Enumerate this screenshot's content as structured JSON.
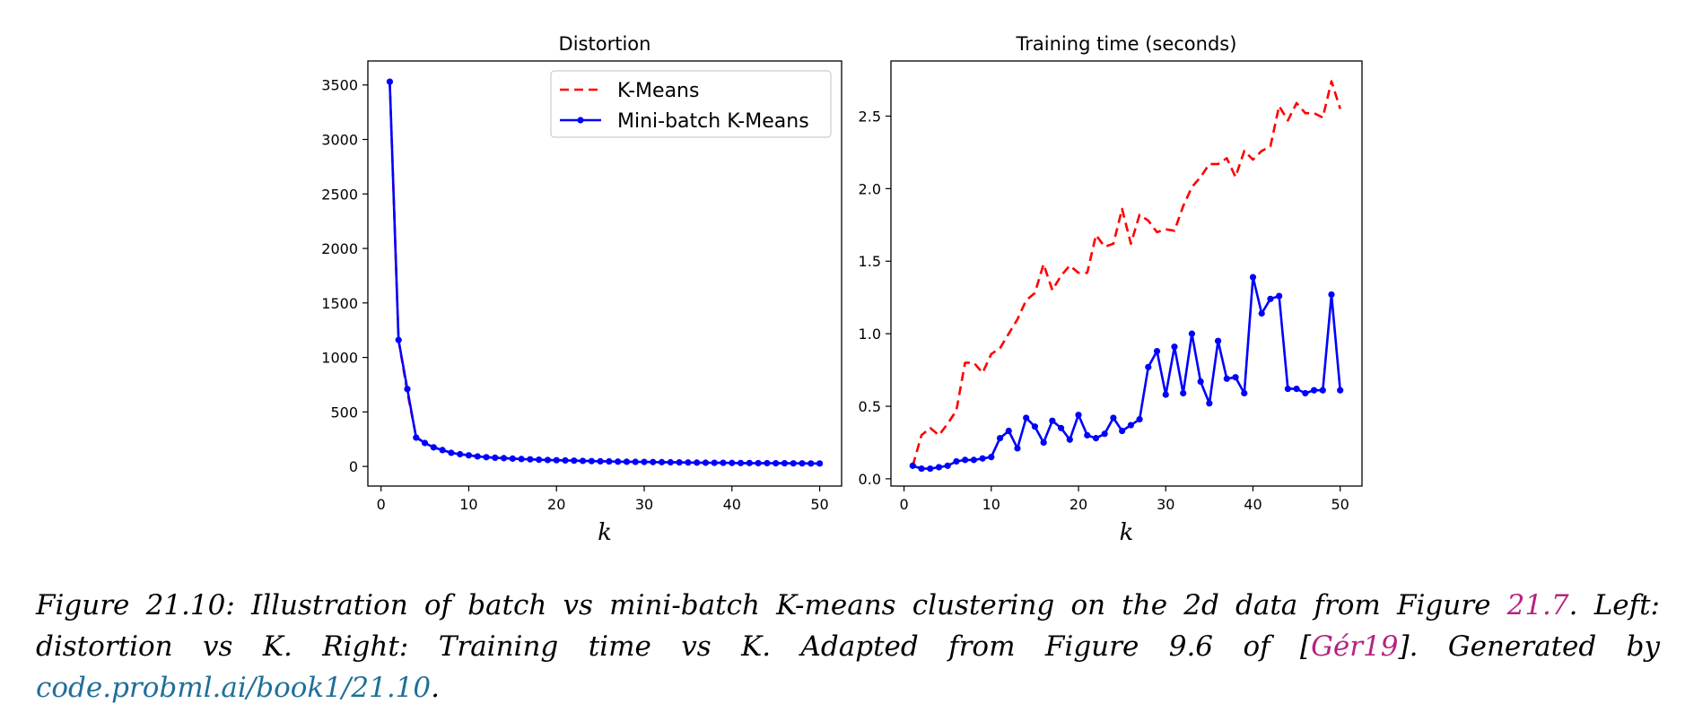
{
  "chart_data": [
    {
      "type": "line",
      "title": "Distortion",
      "xlabel": "k",
      "ylabel": "",
      "xlim": [
        -1.5,
        52.5
      ],
      "ylim": [
        -180,
        3720
      ],
      "xticks": [
        0,
        10,
        20,
        30,
        40,
        50
      ],
      "yticks": [
        0,
        500,
        1000,
        1500,
        2000,
        2500,
        3000,
        3500
      ],
      "legend_location": "upper right",
      "x": [
        1,
        2,
        3,
        4,
        5,
        6,
        7,
        8,
        9,
        10,
        11,
        12,
        13,
        14,
        15,
        16,
        17,
        18,
        19,
        20,
        21,
        22,
        23,
        24,
        25,
        26,
        27,
        28,
        29,
        30,
        31,
        32,
        33,
        34,
        35,
        36,
        37,
        38,
        39,
        40,
        41,
        42,
        43,
        44,
        45,
        46,
        47,
        48,
        49,
        50
      ],
      "series": [
        {
          "name": "K-Means",
          "color": "#ff0000",
          "style": "dashed",
          "values": [
            3530,
            1160,
            680,
            270,
            215,
            175,
            150,
            125,
            112,
            102,
            92,
            85,
            80,
            76,
            72,
            68,
            65,
            62,
            59,
            57,
            55,
            53,
            51,
            49,
            47,
            46,
            44,
            43,
            42,
            41,
            40,
            39,
            38,
            37,
            36,
            35,
            34,
            33,
            33,
            32,
            31,
            31,
            30,
            30,
            29,
            29,
            28,
            28,
            27,
            27
          ]
        },
        {
          "name": "Mini-batch K-Means",
          "color": "#0000ff",
          "style": "solid-markers",
          "values": [
            3530,
            1160,
            710,
            265,
            215,
            175,
            150,
            125,
            112,
            102,
            92,
            85,
            80,
            76,
            72,
            68,
            65,
            62,
            59,
            57,
            55,
            53,
            51,
            49,
            47,
            46,
            44,
            43,
            42,
            41,
            40,
            39,
            38,
            37,
            36,
            35,
            34,
            33,
            33,
            32,
            31,
            31,
            30,
            30,
            29,
            29,
            28,
            28,
            27,
            27
          ]
        }
      ]
    },
    {
      "type": "line",
      "title": "Training time (seconds)",
      "xlabel": "k",
      "ylabel": "",
      "xlim": [
        -1.5,
        52.5
      ],
      "ylim": [
        -0.05,
        2.88
      ],
      "xticks": [
        0,
        10,
        20,
        30,
        40,
        50
      ],
      "yticks": [
        0.0,
        0.5,
        1.0,
        1.5,
        2.0,
        2.5
      ],
      "x": [
        1,
        2,
        3,
        4,
        5,
        6,
        7,
        8,
        9,
        10,
        11,
        12,
        13,
        14,
        15,
        16,
        17,
        18,
        19,
        20,
        21,
        22,
        23,
        24,
        25,
        26,
        27,
        28,
        29,
        30,
        31,
        32,
        33,
        34,
        35,
        36,
        37,
        38,
        39,
        40,
        41,
        42,
        43,
        44,
        45,
        46,
        47,
        48,
        49,
        50
      ],
      "series": [
        {
          "name": "K-Means",
          "color": "#ff0000",
          "style": "dashed",
          "values": [
            0.09,
            0.3,
            0.35,
            0.3,
            0.38,
            0.47,
            0.8,
            0.8,
            0.73,
            0.86,
            0.9,
            1.0,
            1.1,
            1.23,
            1.28,
            1.48,
            1.3,
            1.4,
            1.47,
            1.42,
            1.42,
            1.68,
            1.6,
            1.62,
            1.86,
            1.62,
            1.82,
            1.78,
            1.7,
            1.72,
            1.71,
            1.88,
            2.01,
            2.08,
            2.17,
            2.17,
            2.21,
            2.08,
            2.26,
            2.2,
            2.26,
            2.29,
            2.57,
            2.47,
            2.59,
            2.52,
            2.52,
            2.49,
            2.74,
            2.55
          ]
        },
        {
          "name": "Mini-batch K-Means",
          "color": "#0000ff",
          "style": "solid-markers",
          "values": [
            0.09,
            0.07,
            0.07,
            0.08,
            0.09,
            0.12,
            0.13,
            0.13,
            0.14,
            0.15,
            0.28,
            0.33,
            0.21,
            0.42,
            0.36,
            0.25,
            0.4,
            0.35,
            0.27,
            0.44,
            0.3,
            0.28,
            0.31,
            0.42,
            0.33,
            0.37,
            0.41,
            0.77,
            0.88,
            0.58,
            0.91,
            0.59,
            1.0,
            0.67,
            0.52,
            0.95,
            0.69,
            0.7,
            0.59,
            1.39,
            1.14,
            1.24,
            1.26,
            0.62,
            0.62,
            0.59,
            0.61,
            0.61,
            1.27,
            0.61
          ]
        }
      ]
    }
  ],
  "caption": {
    "prefix": "Figure 21.10: Illustration of batch vs mini-batch K-means clustering on the 2d data from Figure ",
    "figure_ref": "21.7",
    "middle": ". Left: distortion vs K. Right: Training time vs K. Adapted from Figure 9.6 of [",
    "citation": "Gér19",
    "suffix": "]. Generated by ",
    "link": "code.probml.ai/book1/21.10",
    "end": "."
  }
}
